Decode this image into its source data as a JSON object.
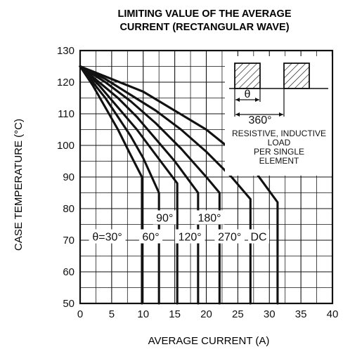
{
  "chart_data": {
    "type": "line",
    "title": "LIMITING VALUE OF THE AVERAGE CURRENT (RECTANGULAR WAVE)",
    "title_lines": [
      "LIMITING VALUE OF THE AVERAGE",
      "CURRENT (RECTANGULAR WAVE)"
    ],
    "xlabel": "AVERAGE CURRENT (A)",
    "ylabel": "CASE TEMPERATURE (°C)",
    "xlim": [
      0,
      40
    ],
    "ylim": [
      50,
      130
    ],
    "x_ticks": [
      0,
      5,
      10,
      15,
      20,
      25,
      30,
      35,
      40
    ],
    "y_ticks": [
      50,
      60,
      70,
      80,
      90,
      100,
      110,
      120,
      130
    ],
    "grid": true,
    "colors": {
      "line": "#111111",
      "grid": "#111111",
      "text": "#111111",
      "background": "#ffffff"
    },
    "series": [
      {
        "name": "θ=30°",
        "x": [
          0,
          2,
          4,
          6,
          8,
          9.8,
          9.8
        ],
        "y": [
          125,
          119,
          112,
          105,
          97,
          90,
          50
        ]
      },
      {
        "name": "60°",
        "x": [
          0,
          2,
          4,
          6,
          8,
          10,
          12.5,
          12.5
        ],
        "y": [
          125,
          120,
          115,
          109,
          103,
          96,
          85,
          50
        ]
      },
      {
        "name": "90°",
        "x": [
          0,
          3,
          6,
          9,
          12,
          15.4,
          15.4
        ],
        "y": [
          125,
          119,
          112,
          105,
          97,
          88,
          50
        ]
      },
      {
        "name": "120°",
        "x": [
          0,
          3,
          6,
          9,
          12,
          15,
          18.7,
          18.7
        ],
        "y": [
          125,
          120,
          115,
          109,
          102,
          95,
          85,
          50
        ]
      },
      {
        "name": "180°",
        "x": [
          0,
          4,
          8,
          12,
          16,
          20,
          22.1,
          22.1
        ],
        "y": [
          125,
          120,
          114,
          107,
          99,
          90,
          85,
          50
        ]
      },
      {
        "name": "270°",
        "x": [
          0,
          4,
          8,
          12,
          16,
          20,
          24,
          27,
          27
        ],
        "y": [
          125,
          121,
          116,
          111,
          105,
          98,
          90,
          83,
          50
        ]
      },
      {
        "name": "DC",
        "x": [
          0,
          5,
          10,
          15,
          20,
          25,
          28,
          31.3,
          31.3
        ],
        "y": [
          125,
          121,
          117,
          111,
          105,
          97,
          91,
          82,
          50
        ]
      }
    ],
    "annotations": [
      {
        "id": "theta30",
        "text": "θ=30°",
        "x": 4.3,
        "y": 71
      },
      {
        "id": "60",
        "text": "60°",
        "x": 11.2,
        "y": 71
      },
      {
        "id": "90",
        "text": "90°",
        "x": 13.4,
        "y": 77
      },
      {
        "id": "120",
        "text": "120°",
        "x": 17.4,
        "y": 71
      },
      {
        "id": "180",
        "text": "180°",
        "x": 20.5,
        "y": 77
      },
      {
        "id": "270",
        "text": "270°",
        "x": 23.7,
        "y": 71
      },
      {
        "id": "dc",
        "text": "DC",
        "x": 28.3,
        "y": 71
      }
    ],
    "waveform_legend": {
      "theta_label": "θ",
      "period_label": "360°",
      "load_lines": [
        "RESISTIVE, INDUCTIVE",
        "LOAD",
        "PER SINGLE",
        "ELEMENT"
      ]
    }
  }
}
